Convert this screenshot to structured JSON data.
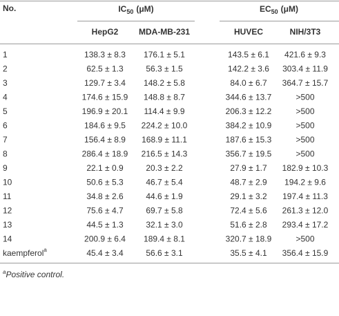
{
  "table": {
    "header": {
      "no": "No.",
      "groups": [
        {
          "main": "IC",
          "sub": "50",
          "unit": "(μM)"
        },
        {
          "main": "EC",
          "sub": "50",
          "unit": "(μM)"
        }
      ],
      "columns": [
        "HepG2",
        "MDA-MB-231",
        "HUVEC",
        "NIH/3T3"
      ]
    },
    "rows": [
      [
        "1",
        "138.3 ± 8.3",
        "176.1 ± 5.1",
        "143.5 ± 6.1",
        "421.6 ± 9.3"
      ],
      [
        "2",
        "62.5 ± 1.3",
        "56.3 ± 1.5",
        "142.2 ± 3.6",
        "303.4 ± 11.9"
      ],
      [
        "3",
        "129.7 ± 3.4",
        "148.2 ± 5.8",
        "84.0 ± 6.7",
        "364.7 ± 15.7"
      ],
      [
        "4",
        "174.6 ± 15.9",
        "148.8 ± 8.7",
        "344.6 ± 13.7",
        ">500"
      ],
      [
        "5",
        "196.9 ± 20.1",
        "114.4 ± 9.9",
        "206.3 ± 12.2",
        ">500"
      ],
      [
        "6",
        "184.6 ± 9.5",
        "224.2 ± 10.0",
        "384.2 ± 10.9",
        ">500"
      ],
      [
        "7",
        "156.4 ± 8.9",
        "168.9 ± 11.1",
        "187.6 ± 15.3",
        ">500"
      ],
      [
        "8",
        "286.4 ± 18.9",
        "216.5 ± 14.3",
        "356.7 ± 19.5",
        ">500"
      ],
      [
        "9",
        "22.1 ± 0.9",
        "20.3 ± 2.2",
        "27.9 ± 1.7",
        "182.9 ± 10.3"
      ],
      [
        "10",
        "50.6 ± 5.3",
        "46.7 ± 5.4",
        "48.7 ± 2.9",
        "194.2 ± 9.6"
      ],
      [
        "11",
        "34.8 ± 2.6",
        "44.6 ± 1.9",
        "29.1 ± 3.2",
        "197.4 ± 11.3"
      ],
      [
        "12",
        "75.6 ± 4.7",
        "69.7 ± 5.8",
        "72.4 ± 5.6",
        "261.3 ± 12.0"
      ],
      [
        "13",
        "44.5 ± 1.3",
        "32.1 ± 3.0",
        "51.6 ± 2.8",
        "293.4 ± 17.2"
      ],
      [
        "14",
        "200.9 ± 6.4",
        "189.4 ± 8.1",
        "320.7 ± 18.9",
        ">500"
      ],
      [
        {
          "text": "kaempferol",
          "sup": "a"
        },
        "45.4 ± 3.4",
        "56.6 ± 3.1",
        "35.5 ± 4.1",
        "356.4 ± 15.9"
      ]
    ],
    "footnote": {
      "mark": "a",
      "text": "Positive control."
    }
  }
}
